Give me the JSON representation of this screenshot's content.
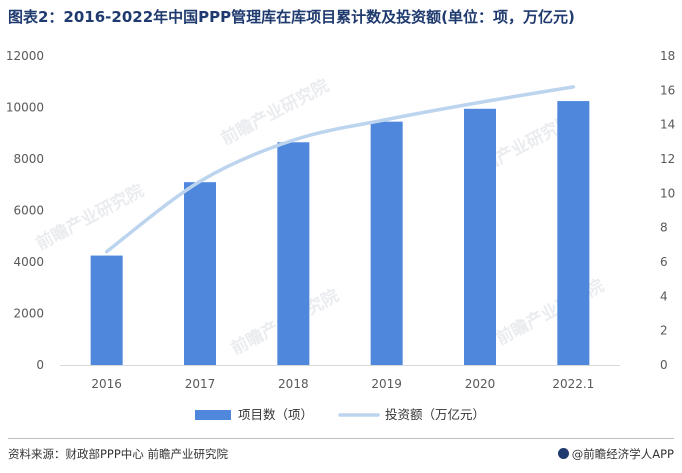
{
  "title": "图表2：2016-2022年中国PPP管理库在库项目累计数及投资额(单位：项，万亿元)",
  "source": "资料来源：财政部PPP中心 前瞻产业研究院",
  "brand": "@前瞻经济学人APP",
  "watermark": "前瞻产业研究院",
  "colors": {
    "bar": "#4e87dc",
    "line": "#bcd4ee",
    "axis_text": "#595959",
    "title": "#1f3a6e"
  },
  "chart_data": {
    "type": "bar",
    "title": "图表2：2016-2022年中国PPP管理库在库项目累计数及投资额(单位：项，万亿元)",
    "categories": [
      "2016",
      "2017",
      "2018",
      "2019",
      "2020",
      "2022.1"
    ],
    "series": [
      {
        "name": "项目数（项）",
        "type": "bar",
        "axis": "left",
        "values": [
          4250,
          7100,
          8650,
          9450,
          9950,
          10250
        ]
      },
      {
        "name": "投资额（万亿元）",
        "type": "line",
        "axis": "right",
        "values": [
          6.6,
          10.7,
          13.1,
          14.3,
          15.3,
          16.2
        ]
      }
    ],
    "y_left": {
      "min": 0,
      "max": 12000,
      "ticks": [
        0,
        2000,
        4000,
        6000,
        8000,
        10000,
        12000
      ]
    },
    "y_right": {
      "min": 0,
      "max": 18,
      "ticks": [
        0,
        2,
        4,
        6,
        8,
        10,
        12,
        14,
        16,
        18
      ]
    },
    "legend_position": "bottom",
    "grid": false
  }
}
